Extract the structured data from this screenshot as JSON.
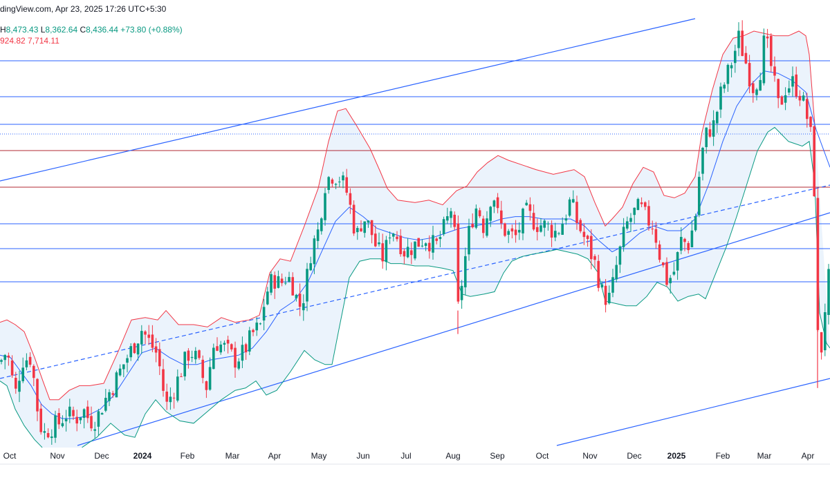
{
  "header": {
    "source_line": "dingView.com, Apr 23, 2025 17:26 UTC+5:30",
    "h_label": "H",
    "h_value": "8,473.43",
    "l_label": "L",
    "l_value": "8,362.64",
    "c_label": "C",
    "c_value": "8,436.44",
    "change": "+73.80 (+0.88%)",
    "indicator_values": [
      "924.82",
      "7,714.11"
    ]
  },
  "colors": {
    "up": "#089981",
    "down": "#f23645",
    "upper_band": "#f23645",
    "lower_band": "#089981",
    "basis": "#2962ff",
    "band_fill": "#e8f1fb",
    "hline_blue": "#2962ff",
    "hline_red": "#b22833",
    "trendline": "#2962ff"
  },
  "chart_data": {
    "type": "candlestick",
    "x_tick_labels": [
      "Oct",
      "Nov",
      "Dec",
      "2024",
      "Feb",
      "Mar",
      "Apr",
      "May",
      "Jun",
      "Jul",
      "Aug",
      "Sep",
      "Oct",
      "Nov",
      "Dec",
      "2025",
      "Feb",
      "Mar",
      "Apr"
    ],
    "bold_ticks": [
      "2024",
      "2025"
    ],
    "y_axis_visible": false,
    "indicator": "Bollinger Bands",
    "close_trace": [
      [
        0,
        3.4
      ],
      [
        10,
        3.9
      ],
      [
        22,
        2.0
      ],
      [
        32,
        3.5
      ],
      [
        45,
        3.6
      ],
      [
        55,
        1.2
      ],
      [
        62,
        0.3
      ],
      [
        72,
        0.6
      ],
      [
        85,
        0.8
      ],
      [
        95,
        1.2
      ],
      [
        110,
        1.0
      ],
      [
        120,
        1.4
      ],
      [
        130,
        0.9
      ],
      [
        140,
        1.0
      ],
      [
        150,
        1.7
      ],
      [
        165,
        2.5
      ],
      [
        180,
        3.4
      ],
      [
        195,
        4.2
      ],
      [
        205,
        4.8
      ],
      [
        215,
        4.3
      ],
      [
        228,
        3.7
      ],
      [
        240,
        1.5
      ],
      [
        255,
        2.5
      ],
      [
        265,
        3.3
      ],
      [
        275,
        3.9
      ],
      [
        285,
        3.5
      ],
      [
        298,
        2.3
      ],
      [
        310,
        4.3
      ],
      [
        325,
        4.0
      ],
      [
        340,
        3.5
      ],
      [
        352,
        3.8
      ],
      [
        365,
        4.6
      ],
      [
        378,
        5.0
      ],
      [
        383,
        6.2
      ],
      [
        395,
        7.0
      ],
      [
        405,
        6.7
      ],
      [
        415,
        7.1
      ],
      [
        425,
        6.6
      ],
      [
        432,
        5.7
      ],
      [
        440,
        6.3
      ],
      [
        450,
        8.2
      ],
      [
        460,
        9.0
      ],
      [
        470,
        11.0
      ],
      [
        478,
        11.4
      ],
      [
        490,
        11.3
      ],
      [
        500,
        10.8
      ],
      [
        508,
        9.8
      ],
      [
        515,
        8.7
      ],
      [
        525,
        9.6
      ],
      [
        535,
        9.1
      ],
      [
        545,
        8.2
      ],
      [
        555,
        7.8
      ],
      [
        565,
        9.2
      ],
      [
        575,
        8.7
      ],
      [
        585,
        8.1
      ],
      [
        600,
        8.4
      ],
      [
        615,
        8.7
      ],
      [
        630,
        8.3
      ],
      [
        645,
        9.3
      ],
      [
        655,
        10.2
      ],
      [
        662,
        5.6
      ],
      [
        670,
        7.3
      ],
      [
        680,
        9.3
      ],
      [
        690,
        10.1
      ],
      [
        700,
        9.1
      ],
      [
        712,
        10.8
      ],
      [
        722,
        9.3
      ],
      [
        733,
        8.9
      ],
      [
        745,
        8.7
      ],
      [
        760,
        9.8
      ],
      [
        775,
        9.3
      ],
      [
        790,
        9.2
      ],
      [
        805,
        8.9
      ],
      [
        815,
        9.5
      ],
      [
        825,
        10.3
      ],
      [
        835,
        9.3
      ],
      [
        848,
        8.5
      ],
      [
        860,
        7.6
      ],
      [
        872,
        6.2
      ],
      [
        882,
        6.1
      ],
      [
        892,
        7.6
      ],
      [
        905,
        9.2
      ],
      [
        915,
        9.7
      ],
      [
        925,
        10.0
      ],
      [
        935,
        9.5
      ],
      [
        945,
        9.2
      ],
      [
        955,
        7.8
      ],
      [
        965,
        6.8
      ],
      [
        975,
        7.3
      ],
      [
        985,
        8.6
      ],
      [
        995,
        8.4
      ],
      [
        1005,
        9.5
      ],
      [
        1013,
        12.0
      ],
      [
        1022,
        13.2
      ],
      [
        1032,
        13.5
      ],
      [
        1042,
        14.8
      ],
      [
        1050,
        15.5
      ],
      [
        1060,
        16.4
      ],
      [
        1068,
        17.2
      ],
      [
        1078,
        16.2
      ],
      [
        1088,
        15.1
      ],
      [
        1098,
        15.6
      ],
      [
        1106,
        17.3
      ],
      [
        1116,
        15.8
      ],
      [
        1126,
        14.2
      ],
      [
        1136,
        15.1
      ],
      [
        1146,
        15.3
      ],
      [
        1158,
        14.8
      ],
      [
        1168,
        13.7
      ],
      [
        1176,
        12.4
      ],
      [
        1180,
        7.0
      ],
      [
        1184,
        2.8
      ],
      [
        1190,
        4.8
      ],
      [
        1196,
        6.8
      ],
      [
        1200,
        7.1
      ]
    ],
    "upper_band": [
      [
        0,
        5.1
      ],
      [
        10,
        5.2
      ],
      [
        22,
        5.0
      ],
      [
        35,
        4.7
      ],
      [
        50,
        3.6
      ],
      [
        62,
        2.6
      ],
      [
        72,
        1.8
      ],
      [
        85,
        1.8
      ],
      [
        100,
        2.2
      ],
      [
        115,
        2.4
      ],
      [
        130,
        2.4
      ],
      [
        150,
        2.5
      ],
      [
        170,
        3.8
      ],
      [
        190,
        5.2
      ],
      [
        210,
        5.3
      ],
      [
        228,
        5.2
      ],
      [
        240,
        5.6
      ],
      [
        258,
        5.0
      ],
      [
        280,
        5.0
      ],
      [
        300,
        4.9
      ],
      [
        320,
        5.3
      ],
      [
        340,
        5.1
      ],
      [
        360,
        5.2
      ],
      [
        375,
        5.4
      ],
      [
        390,
        7.2
      ],
      [
        405,
        7.8
      ],
      [
        420,
        7.7
      ],
      [
        440,
        9.2
      ],
      [
        460,
        10.8
      ],
      [
        475,
        12.8
      ],
      [
        488,
        14.1
      ],
      [
        500,
        14.2
      ],
      [
        515,
        13.5
      ],
      [
        535,
        12.5
      ],
      [
        550,
        11.5
      ],
      [
        560,
        10.8
      ],
      [
        575,
        10.3
      ],
      [
        600,
        10.2
      ],
      [
        620,
        10.3
      ],
      [
        640,
        10.1
      ],
      [
        660,
        10.7
      ],
      [
        675,
        10.9
      ],
      [
        690,
        11.5
      ],
      [
        705,
        11.9
      ],
      [
        720,
        12.2
      ],
      [
        735,
        12.0
      ],
      [
        755,
        11.8
      ],
      [
        775,
        11.6
      ],
      [
        800,
        11.4
      ],
      [
        815,
        11.5
      ],
      [
        830,
        11.6
      ],
      [
        845,
        11.3
      ],
      [
        860,
        10.2
      ],
      [
        875,
        9.2
      ],
      [
        885,
        9.5
      ],
      [
        900,
        10.0
      ],
      [
        915,
        11.0
      ],
      [
        930,
        11.7
      ],
      [
        945,
        11.5
      ],
      [
        960,
        10.5
      ],
      [
        975,
        10.4
      ],
      [
        990,
        10.6
      ],
      [
        1005,
        11.3
      ],
      [
        1015,
        13.2
      ],
      [
        1030,
        15.0
      ],
      [
        1045,
        16.5
      ],
      [
        1060,
        17.2
      ],
      [
        1075,
        17.3
      ],
      [
        1090,
        17.5
      ],
      [
        1105,
        17.4
      ],
      [
        1120,
        17.3
      ],
      [
        1140,
        17.3
      ],
      [
        1155,
        17.5
      ],
      [
        1165,
        17.3
      ],
      [
        1170,
        16.5
      ],
      [
        1178,
        13.5
      ]
    ],
    "basis": [
      [
        0,
        3.7
      ],
      [
        15,
        3.6
      ],
      [
        30,
        3.0
      ],
      [
        45,
        2.4
      ],
      [
        60,
        1.6
      ],
      [
        75,
        1.2
      ],
      [
        90,
        1.0
      ],
      [
        105,
        1.0
      ],
      [
        125,
        1.1
      ],
      [
        145,
        1.4
      ],
      [
        165,
        2.0
      ],
      [
        185,
        2.9
      ],
      [
        205,
        3.8
      ],
      [
        225,
        4.0
      ],
      [
        245,
        3.6
      ],
      [
        265,
        3.3
      ],
      [
        285,
        3.3
      ],
      [
        305,
        3.5
      ],
      [
        325,
        3.6
      ],
      [
        345,
        3.7
      ],
      [
        365,
        4.0
      ],
      [
        385,
        4.7
      ],
      [
        405,
        5.6
      ],
      [
        425,
        6.0
      ],
      [
        445,
        6.8
      ],
      [
        465,
        8.1
      ],
      [
        485,
        9.4
      ],
      [
        505,
        10.0
      ],
      [
        525,
        9.6
      ],
      [
        545,
        9.1
      ],
      [
        565,
        8.9
      ],
      [
        585,
        8.7
      ],
      [
        605,
        8.6
      ],
      [
        625,
        8.7
      ],
      [
        645,
        8.9
      ],
      [
        665,
        9.1
      ],
      [
        685,
        9.2
      ],
      [
        705,
        9.3
      ],
      [
        725,
        9.5
      ],
      [
        745,
        9.6
      ],
      [
        765,
        9.6
      ],
      [
        785,
        9.5
      ],
      [
        805,
        9.5
      ],
      [
        825,
        9.5
      ],
      [
        845,
        9.2
      ],
      [
        865,
        8.6
      ],
      [
        885,
        8.1
      ],
      [
        905,
        8.4
      ],
      [
        925,
        8.9
      ],
      [
        945,
        9.2
      ],
      [
        965,
        9.0
      ],
      [
        985,
        9.0
      ],
      [
        1005,
        9.5
      ],
      [
        1025,
        11.0
      ],
      [
        1045,
        12.8
      ],
      [
        1065,
        14.3
      ],
      [
        1085,
        15.2
      ],
      [
        1105,
        15.8
      ],
      [
        1125,
        15.7
      ],
      [
        1145,
        15.4
      ],
      [
        1165,
        14.9
      ],
      [
        1180,
        13.3
      ],
      [
        1200,
        11.7
      ]
    ],
    "lower_band": [
      [
        0,
        2.6
      ],
      [
        10,
        2.4
      ],
      [
        22,
        1.4
      ],
      [
        35,
        0.7
      ],
      [
        50,
        0.1
      ],
      [
        60,
        -0.2
      ],
      [
        75,
        -0.8
      ],
      [
        90,
        -0.6
      ],
      [
        105,
        -0.6
      ],
      [
        120,
        -0.2
      ],
      [
        140,
        0.2
      ],
      [
        160,
        0.8
      ],
      [
        180,
        0.3
      ],
      [
        195,
        0.2
      ],
      [
        210,
        1.2
      ],
      [
        225,
        1.8
      ],
      [
        240,
        1.3
      ],
      [
        260,
        0.9
      ],
      [
        280,
        0.8
      ],
      [
        300,
        1.3
      ],
      [
        320,
        1.8
      ],
      [
        340,
        2.2
      ],
      [
        355,
        2.3
      ],
      [
        370,
        2.6
      ],
      [
        385,
        2.0
      ],
      [
        400,
        2.2
      ],
      [
        420,
        3.0
      ],
      [
        440,
        3.9
      ],
      [
        455,
        3.5
      ],
      [
        470,
        3.3
      ],
      [
        480,
        3.3
      ],
      [
        490,
        4.8
      ],
      [
        505,
        7.0
      ],
      [
        520,
        7.7
      ],
      [
        535,
        7.8
      ],
      [
        550,
        7.8
      ],
      [
        565,
        7.6
      ],
      [
        580,
        7.6
      ],
      [
        600,
        7.5
      ],
      [
        620,
        7.5
      ],
      [
        640,
        7.4
      ],
      [
        655,
        7.3
      ],
      [
        668,
        6.3
      ],
      [
        680,
        6.2
      ],
      [
        700,
        6.3
      ],
      [
        715,
        6.4
      ],
      [
        728,
        7.2
      ],
      [
        740,
        7.7
      ],
      [
        755,
        7.9
      ],
      [
        770,
        8.0
      ],
      [
        790,
        8.1
      ],
      [
        805,
        8.2
      ],
      [
        820,
        8.1
      ],
      [
        835,
        8.0
      ],
      [
        850,
        7.8
      ],
      [
        865,
        7.2
      ],
      [
        875,
        6.0
      ],
      [
        890,
        5.9
      ],
      [
        905,
        5.8
      ],
      [
        920,
        5.8
      ],
      [
        935,
        6.2
      ],
      [
        950,
        6.8
      ],
      [
        965,
        6.6
      ],
      [
        980,
        6.0
      ],
      [
        995,
        6.2
      ],
      [
        1010,
        6.3
      ],
      [
        1020,
        6.1
      ],
      [
        1035,
        7.2
      ],
      [
        1050,
        8.3
      ],
      [
        1065,
        9.6
      ],
      [
        1080,
        11.0
      ],
      [
        1095,
        12.4
      ],
      [
        1110,
        13.2
      ],
      [
        1120,
        13.4
      ],
      [
        1140,
        12.8
      ],
      [
        1160,
        12.6
      ],
      [
        1170,
        12.8
      ],
      [
        1178,
        11.0
      ],
      [
        1185,
        5.5
      ],
      [
        1195,
        4.2
      ],
      [
        1200,
        4.0
      ]
    ],
    "spikes": [
      {
        "x": 662,
        "low": 4.6
      },
      {
        "x": 1182,
        "low": 2.3
      }
    ]
  }
}
